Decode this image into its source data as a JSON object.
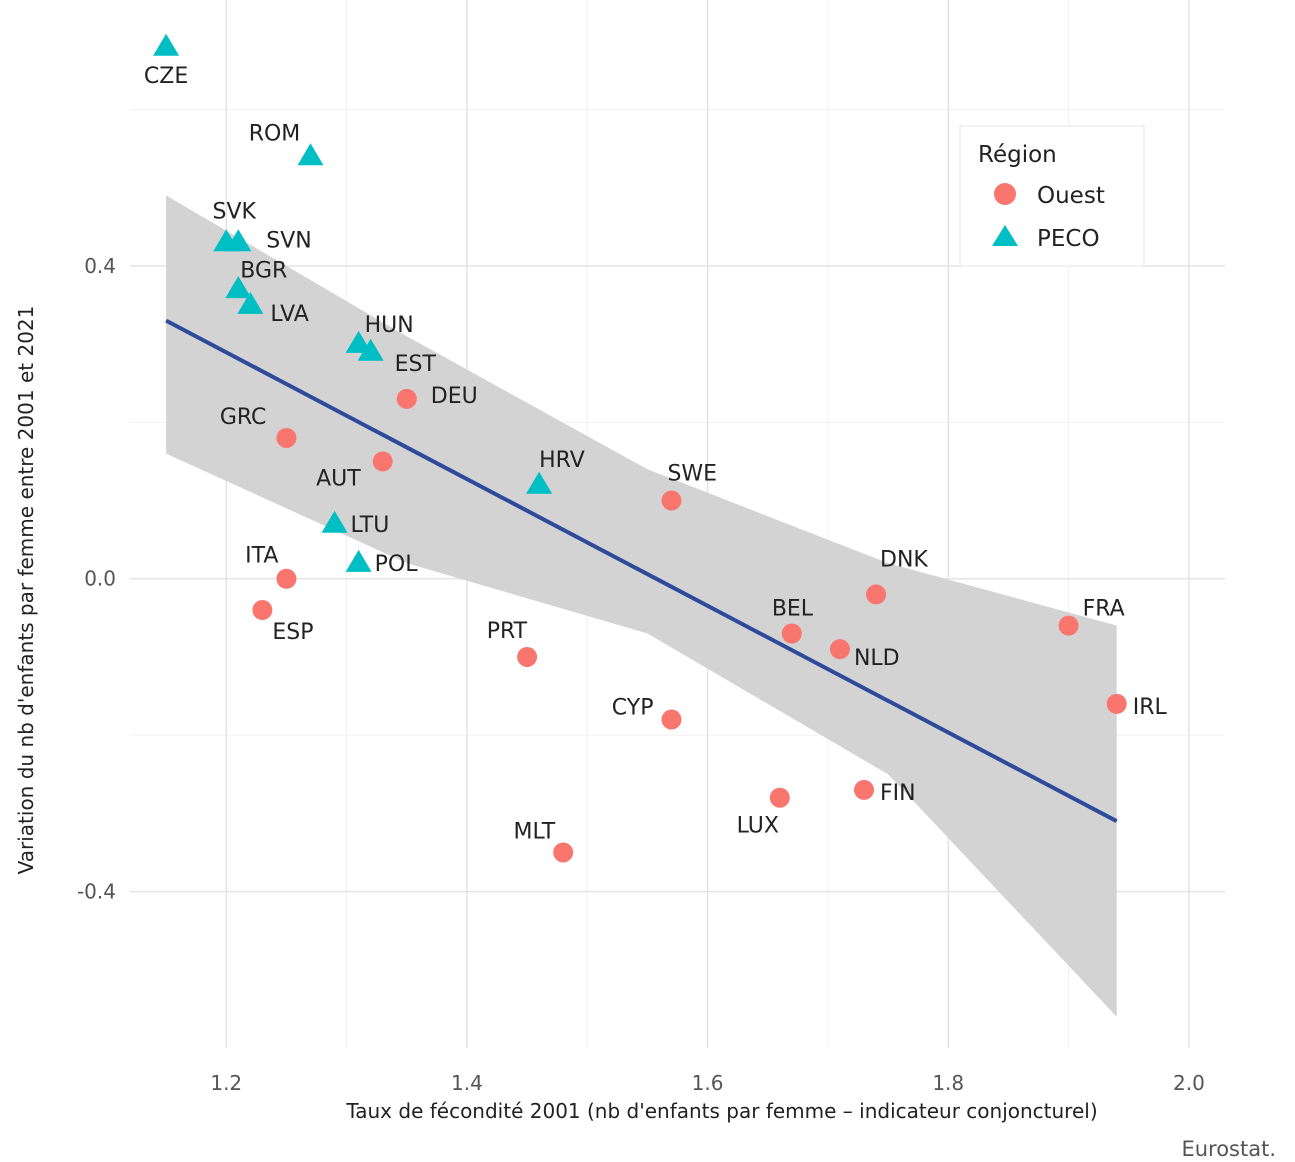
{
  "chart_data": {
    "type": "scatter",
    "xlabel": "Taux de fécondité 2001 (nb d'enfants par femme – indicateur conjoncturel)",
    "ylabel": "Variation du nb d'enfants par femme entre 2001 et 2021",
    "xlim": [
      1.12,
      2.03
    ],
    "ylim": [
      -0.6,
      0.74
    ],
    "x_ticks": [
      1.2,
      1.4,
      1.6,
      1.8,
      2.0
    ],
    "x_tick_labels": [
      "1.2",
      "1.4",
      "1.6",
      "1.8",
      "2.0"
    ],
    "y_ticks": [
      0.4,
      0.0,
      -0.4
    ],
    "y_tick_labels": [
      "0.4",
      "0.0",
      "-0.4"
    ],
    "grid": true,
    "legend": {
      "title": "Région",
      "position": "top-right",
      "entries": [
        {
          "name": "Ouest",
          "shape": "circle",
          "color": "#F8766D"
        },
        {
          "name": "PECO",
          "shape": "triangle",
          "color": "#00BFC4"
        }
      ]
    },
    "series": [
      {
        "name": "Ouest",
        "shape": "circle",
        "color": "#F8766D",
        "points": [
          {
            "label": "DEU",
            "x": 1.35,
            "y": 0.23
          },
          {
            "label": "GRC",
            "x": 1.25,
            "y": 0.18
          },
          {
            "label": "AUT",
            "x": 1.33,
            "y": 0.15
          },
          {
            "label": "SWE",
            "x": 1.57,
            "y": 0.1
          },
          {
            "label": "ITA",
            "x": 1.25,
            "y": 0.0
          },
          {
            "label": "ESP",
            "x": 1.23,
            "y": -0.04
          },
          {
            "label": "DNK",
            "x": 1.74,
            "y": -0.02
          },
          {
            "label": "BEL",
            "x": 1.67,
            "y": -0.07
          },
          {
            "label": "NLD",
            "x": 1.71,
            "y": -0.09
          },
          {
            "label": "FRA",
            "x": 1.9,
            "y": -0.06
          },
          {
            "label": "PRT",
            "x": 1.45,
            "y": -0.1
          },
          {
            "label": "CYP",
            "x": 1.57,
            "y": -0.18
          },
          {
            "label": "IRL",
            "x": 1.94,
            "y": -0.16
          },
          {
            "label": "FIN",
            "x": 1.73,
            "y": -0.27
          },
          {
            "label": "LUX",
            "x": 1.66,
            "y": -0.28
          },
          {
            "label": "MLT",
            "x": 1.48,
            "y": -0.35
          }
        ]
      },
      {
        "name": "PECO",
        "shape": "triangle",
        "color": "#00BFC4",
        "points": [
          {
            "label": "CZE",
            "x": 1.15,
            "y": 0.68
          },
          {
            "label": "ROM",
            "x": 1.27,
            "y": 0.54
          },
          {
            "label": "SVK",
            "x": 1.2,
            "y": 0.43
          },
          {
            "label": "SVN",
            "x": 1.21,
            "y": 0.43
          },
          {
            "label": "BGR",
            "x": 1.21,
            "y": 0.37
          },
          {
            "label": "LVA",
            "x": 1.22,
            "y": 0.35
          },
          {
            "label": "HUN",
            "x": 1.31,
            "y": 0.3
          },
          {
            "label": "EST",
            "x": 1.32,
            "y": 0.29
          },
          {
            "label": "HRV",
            "x": 1.46,
            "y": 0.12
          },
          {
            "label": "LTU",
            "x": 1.29,
            "y": 0.07
          },
          {
            "label": "POL",
            "x": 1.31,
            "y": 0.02
          }
        ]
      }
    ],
    "regression": {
      "color": "#2E4A9A",
      "band_color": "#D3D3D3",
      "line": [
        [
          1.15,
          0.33
        ],
        [
          1.94,
          -0.31
        ]
      ],
      "band_upper": [
        [
          1.15,
          0.49
        ],
        [
          1.35,
          0.31
        ],
        [
          1.55,
          0.14
        ],
        [
          1.75,
          0.02
        ],
        [
          1.94,
          -0.06
        ]
      ],
      "band_lower": [
        [
          1.15,
          0.16
        ],
        [
          1.35,
          0.02
        ],
        [
          1.55,
          -0.07
        ],
        [
          1.75,
          -0.25
        ],
        [
          1.94,
          -0.56
        ]
      ]
    },
    "source": "Eurostat."
  }
}
